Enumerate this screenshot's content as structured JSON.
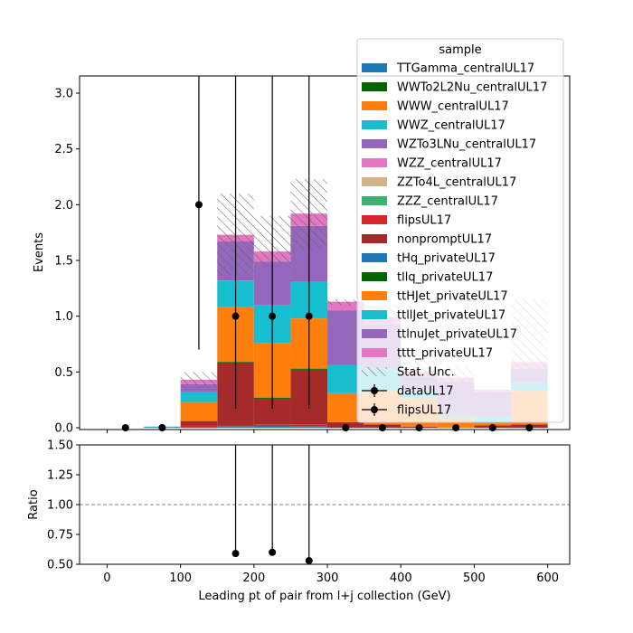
{
  "chart_data": [
    {
      "type": "bar",
      "stacked": true,
      "ylabel": "Events",
      "ylim": [
        0,
        3.15
      ],
      "xlim": [
        -37.5,
        630
      ],
      "bin_edges": [
        0,
        50,
        100,
        150,
        200,
        250,
        300,
        350,
        400,
        450,
        500,
        550,
        600
      ],
      "y_ticks": [
        "0.0",
        "0.5",
        "1.0",
        "1.5",
        "2.0",
        "2.5",
        "3.0"
      ],
      "y_tick_values": [
        0,
        0.5,
        1.0,
        1.5,
        2.0,
        2.5,
        3.0
      ],
      "legend": {
        "title": "sample",
        "placement": "top-right",
        "entries": [
          {
            "label": "TTGamma_centralUL17",
            "color": "#1f77b4",
            "kind": "patch"
          },
          {
            "label": "WWTo2L2Nu_centralUL17",
            "color": "#006400",
            "kind": "patch"
          },
          {
            "label": "WWW_centralUL17",
            "color": "#ff7f0e",
            "kind": "patch"
          },
          {
            "label": "WWZ_centralUL17",
            "color": "#17becf",
            "kind": "patch"
          },
          {
            "label": "WZTo3LNu_centralUL17",
            "color": "#9467bd",
            "kind": "patch"
          },
          {
            "label": "WZZ_centralUL17",
            "color": "#e377c2",
            "kind": "patch"
          },
          {
            "label": "ZZTo4L_centralUL17",
            "color": "#d2b48c",
            "kind": "patch"
          },
          {
            "label": "ZZZ_centralUL17",
            "color": "#3cb371",
            "kind": "patch"
          },
          {
            "label": "flipsUL17",
            "color": "#d62728",
            "kind": "patch"
          },
          {
            "label": "nonpromptUL17",
            "color": "#a52a2a",
            "kind": "patch"
          },
          {
            "label": "tHq_privateUL17",
            "color": "#1f77b4",
            "kind": "patch"
          },
          {
            "label": "tllq_privateUL17",
            "color": "#006400",
            "kind": "patch"
          },
          {
            "label": "ttHJet_privateUL17",
            "color": "#ff7f0e",
            "kind": "patch"
          },
          {
            "label": "ttllJet_privateUL17",
            "color": "#17becf",
            "kind": "patch"
          },
          {
            "label": "ttlnuJet_privateUL17",
            "color": "#9467bd",
            "kind": "patch"
          },
          {
            "label": "tttt_privateUL17",
            "color": "#e377c2",
            "kind": "patch"
          },
          {
            "label": "Stat. Unc.",
            "color": "#555555",
            "kind": "hatch"
          },
          {
            "label": "dataUL17",
            "color": "#000000",
            "kind": "errorbar"
          },
          {
            "label": "flipsUL17",
            "color": "#000000",
            "kind": "errorbar"
          }
        ]
      },
      "series": [
        {
          "name": "TTGamma_centralUL17",
          "color": "#1f77b4",
          "values": [
            0,
            0.005,
            0,
            0.01,
            0.02,
            0.01,
            0,
            0,
            0,
            0,
            0,
            0
          ]
        },
        {
          "name": "flipsUL17",
          "color": "#d62728",
          "values": [
            0,
            0,
            0.02,
            0.01,
            0.01,
            0.02,
            0,
            0,
            0,
            0,
            0,
            0
          ]
        },
        {
          "name": "nonpromptUL17",
          "color": "#a52a2a",
          "values": [
            0,
            0,
            0.04,
            0.56,
            0.23,
            0.49,
            0.05,
            0.03,
            0.01,
            0,
            0.02,
            0.03
          ]
        },
        {
          "name": "tllq_privateUL17",
          "color": "#006400",
          "values": [
            0,
            0,
            0,
            0.01,
            0.01,
            0.01,
            0,
            0,
            0,
            0,
            0,
            0
          ]
        },
        {
          "name": "ttHJet_privateUL17",
          "color": "#ff7f0e",
          "values": [
            0,
            0,
            0.17,
            0.49,
            0.49,
            0.45,
            0.26,
            0.3,
            0.25,
            0.09,
            0.02,
            0.3
          ]
        },
        {
          "name": "ttllJet_privateUL17",
          "color": "#17becf",
          "values": [
            0,
            0.005,
            0.09,
            0.24,
            0.34,
            0.33,
            0.25,
            0.2,
            0.08,
            0.02,
            0.06,
            0.07
          ]
        },
        {
          "name": "ttlnuJet_privateUL17",
          "color": "#9467bd",
          "values": [
            0,
            0,
            0.07,
            0.35,
            0.39,
            0.5,
            0.49,
            0.4,
            0.12,
            0.3,
            0.22,
            0.13
          ]
        },
        {
          "name": "tttt_privateUL17",
          "color": "#e377c2",
          "values": [
            0,
            0,
            0.04,
            0.06,
            0.09,
            0.11,
            0.08,
            0.06,
            0.04,
            0.04,
            0.02,
            0.06
          ]
        }
      ],
      "stat_unc": {
        "low": [
          0,
          0,
          0.38,
          1.37,
          1.47,
          1.6,
          1.1,
          0.95,
          0.4,
          0.36,
          0.3,
          0.49
        ],
        "high": [
          0,
          0.01,
          0.5,
          2.1,
          1.9,
          2.23,
          1.15,
          1.1,
          0.6,
          0.55,
          0.34,
          1.15
        ]
      },
      "data_points": {
        "label": "dataUL17",
        "x": [
          25,
          75,
          125,
          175,
          225,
          275,
          325,
          375,
          425,
          475,
          525,
          575
        ],
        "y": [
          0,
          0,
          2,
          1,
          1,
          1,
          0,
          0,
          0,
          0,
          0,
          0
        ],
        "err_low": [
          0,
          0,
          1.3,
          0.83,
          0.83,
          0.83,
          0,
          0,
          0,
          0,
          0,
          0
        ],
        "err_high": [
          0,
          0,
          2.63,
          2.3,
          2.3,
          2.3,
          0,
          0,
          0,
          0,
          0,
          0
        ]
      }
    },
    {
      "type": "scatter",
      "xlabel": "Leading pt of pair from l+j collection (GeV)",
      "ylabel": "Ratio",
      "xlim": [
        -37.5,
        630
      ],
      "ylim": [
        0.5,
        1.5
      ],
      "x_ticks": [
        "0",
        "100",
        "200",
        "300",
        "400",
        "500",
        "600"
      ],
      "x_tick_values": [
        0,
        100,
        200,
        300,
        400,
        500,
        600
      ],
      "y_ticks": [
        "0.50",
        "0.75",
        "1.00",
        "1.25",
        "1.50"
      ],
      "y_tick_values": [
        0.5,
        0.75,
        1.0,
        1.25,
        1.5
      ],
      "reference_line": 1.0,
      "points": {
        "x": [
          175,
          225,
          275
        ],
        "y": [
          0.59,
          0.6,
          0.53
        ],
        "err_high": [
          1.5,
          1.5,
          1.5
        ]
      }
    }
  ]
}
